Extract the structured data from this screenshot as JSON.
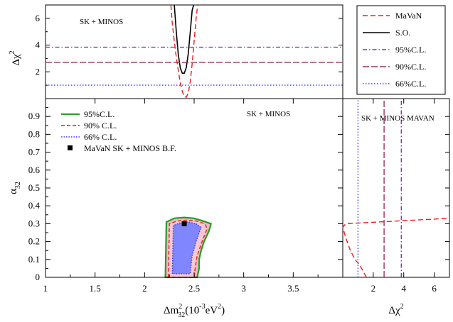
{
  "chart_data": [
    {
      "panel": "top",
      "type": "line",
      "annotation": "SK + MINOS",
      "ylabel": "Δχ",
      "ylabel_sup": "2",
      "xlim": [
        1,
        4
      ],
      "ylim": [
        0,
        7
      ],
      "yticks": [
        2,
        4,
        6
      ],
      "series": [
        {
          "name": "MaVaN",
          "color": "#e8201e",
          "dash": "dashed",
          "x": [
            2.265,
            2.28,
            2.3,
            2.32,
            2.34,
            2.36,
            2.38,
            2.4,
            2.42,
            2.44,
            2.46,
            2.48,
            2.5,
            2.52,
            2.535
          ],
          "y": [
            7.0,
            5.6,
            4.3,
            3.1,
            2.1,
            1.2,
            0.55,
            0.15,
            0.1,
            0.4,
            1.2,
            2.6,
            4.3,
            6.0,
            7.0
          ]
        },
        {
          "name": "S.O.",
          "color": "#000000",
          "dash": "solid",
          "x": [
            2.3,
            2.32,
            2.34,
            2.36,
            2.38,
            2.4,
            2.42,
            2.44,
            2.46,
            2.48,
            2.495
          ],
          "y": [
            7.0,
            5.0,
            3.3,
            2.3,
            1.9,
            1.9,
            2.3,
            3.3,
            4.9,
            6.6,
            7.0
          ]
        },
        {
          "name": "95%C.L.",
          "color": "#7a3fa3",
          "dash": "dashdot",
          "x": [
            1,
            4
          ],
          "y": [
            3.84,
            3.84
          ]
        },
        {
          "name": "90%C.L.",
          "color": "#9b3355",
          "dash": "longdash",
          "x": [
            1,
            4
          ],
          "y": [
            2.71,
            2.71
          ]
        },
        {
          "name": "66%C.L.",
          "color": "#3a3aff",
          "dash": "dotted",
          "x": [
            1,
            4
          ],
          "y": [
            1.0,
            1.0
          ]
        }
      ]
    },
    {
      "panel": "main",
      "type": "contour",
      "annotation": "SK + MINOS",
      "xlabel_main": "Δm",
      "xlabel_sup": "2",
      "xlabel_sub": "32",
      "xlabel_rest": "(10",
      "xlabel_sup2": "-3",
      "xlabel_end": "eV",
      "xlabel_sup3": "2",
      "xlabel_close": ")",
      "ylabel": "α",
      "ylabel_sub": "32",
      "xlim": [
        1,
        4
      ],
      "ylim": [
        0,
        1
      ],
      "xticks": [
        "1",
        "1.5",
        "2",
        "2.5",
        "3",
        "3.5"
      ],
      "xtick_values": [
        1,
        1.5,
        2,
        2.5,
        3,
        3.5
      ],
      "yticks": [
        "0",
        "0.1",
        "0.2",
        "0.3",
        "0.4",
        "0.5",
        "0.6",
        "0.7",
        "0.8",
        "0.9"
      ],
      "ytick_values": [
        0,
        0.1,
        0.2,
        0.3,
        0.4,
        0.5,
        0.6,
        0.7,
        0.8,
        0.9
      ],
      "series": [
        {
          "name": "95%C.L.",
          "color": "#22a020",
          "fill": "#f0b8c4",
          "x": [
            2.21,
            2.22,
            2.3,
            2.4,
            2.5,
            2.59,
            2.67,
            2.65,
            2.6,
            2.57,
            2.55,
            2.55,
            2.53,
            2.21
          ],
          "y": [
            0.0,
            0.31,
            0.33,
            0.335,
            0.33,
            0.315,
            0.3,
            0.26,
            0.2,
            0.15,
            0.1,
            0.05,
            0.0,
            0.0
          ]
        },
        {
          "name": "90% C.L.",
          "color": "#e8201e",
          "fill": "#f6c8d2",
          "x": [
            2.24,
            2.25,
            2.33,
            2.42,
            2.52,
            2.61,
            2.63,
            2.58,
            2.53,
            2.51,
            2.5,
            2.24
          ],
          "y": [
            0.0,
            0.3,
            0.315,
            0.32,
            0.315,
            0.3,
            0.27,
            0.2,
            0.12,
            0.05,
            0.0,
            0.0
          ]
        },
        {
          "name": "66% C.L.",
          "color": "#3a3aff",
          "fill": "#7f86ff",
          "x": [
            2.28,
            2.29,
            2.36,
            2.44,
            2.52,
            2.57,
            2.52,
            2.48,
            2.46,
            2.28
          ],
          "y": [
            0.02,
            0.29,
            0.305,
            0.31,
            0.3,
            0.28,
            0.2,
            0.12,
            0.02,
            0.02
          ]
        }
      ],
      "best_fit": {
        "name": "MaVaN SK + MINOS B.F.",
        "x": 2.4,
        "y": 0.3
      }
    },
    {
      "panel": "right",
      "type": "line",
      "annotation": "SK + MINOS MAVAN",
      "xlabel": "Δχ",
      "xlabel_sup": "2",
      "xlim": [
        0,
        7
      ],
      "ylim": [
        0,
        1
      ],
      "xticks": [
        "2",
        "4",
        "6"
      ],
      "xtick_values": [
        2,
        4,
        6
      ],
      "series": [
        {
          "name": "MaVaN",
          "color": "#e8201e",
          "dash": "dashed",
          "x": [
            1.55,
            1.3,
            1.1,
            0.8,
            0.5,
            0.2,
            0.0,
            0.2,
            7.0
          ],
          "y": [
            0.0,
            0.04,
            0.07,
            0.1,
            0.15,
            0.22,
            0.28,
            0.3,
            0.33
          ]
        },
        {
          "name": "95%C.L.",
          "color": "#7a3fa3",
          "dash": "dashdot",
          "x": [
            3.84,
            3.84
          ],
          "y": [
            0,
            1
          ]
        },
        {
          "name": "90%C.L.",
          "color": "#9b3355",
          "dash": "longdash",
          "x": [
            2.71,
            2.71
          ],
          "y": [
            0,
            1
          ]
        },
        {
          "name": "66%C.L.",
          "color": "#3a3aff",
          "dash": "dotted",
          "x": [
            1.0,
            1.0
          ],
          "y": [
            0,
            1
          ]
        }
      ]
    }
  ]
}
